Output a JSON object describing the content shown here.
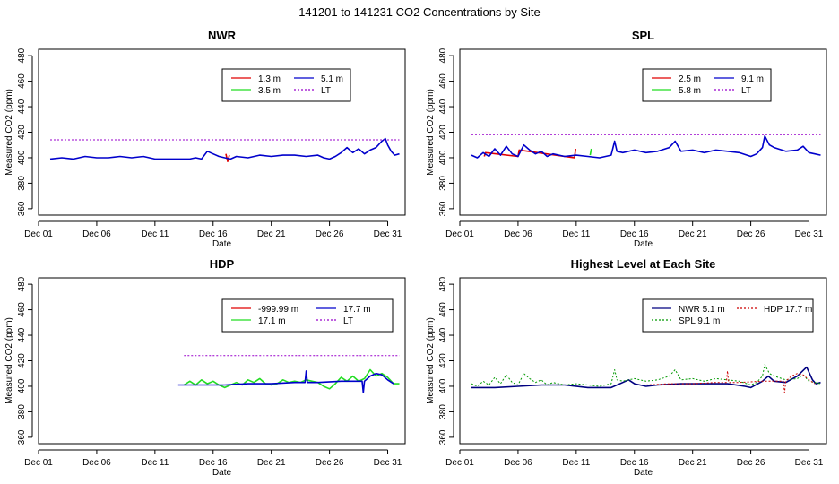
{
  "title": "141201  to  141231 CO2 Concentrations by Site",
  "colors": {
    "red": "#e00000",
    "green": "#22dd22",
    "blue": "#0000cc",
    "purple": "#9900cc",
    "darkred": "#cc0000",
    "darkgreen": "#009900",
    "navy": "#000080"
  },
  "chart_data": [
    {
      "type": "line",
      "title": "NWR",
      "xlabel": "Date",
      "ylabel": "Measured CO2 (ppm)",
      "xlim": [
        0,
        31.5
      ],
      "ylim": [
        355,
        485
      ],
      "yticks": [
        360,
        380,
        400,
        420,
        440,
        460,
        480
      ],
      "xticks": [
        0,
        5,
        10,
        15,
        20,
        25,
        30
      ],
      "xticklabels": [
        "Dec 01",
        "Dec 06",
        "Dec 11",
        "Dec 16",
        "Dec 21",
        "Dec 26",
        "Dec 31"
      ],
      "legend": {
        "position": "top-right",
        "columns": 2,
        "entries": [
          {
            "label": "1.3 m",
            "color": "red",
            "dash": false
          },
          {
            "label": "3.5 m",
            "color": "green",
            "dash": false
          },
          {
            "label": "5.1 m",
            "color": "blue",
            "dash": false
          },
          {
            "label": "LT",
            "color": "purple",
            "dash": true
          }
        ]
      },
      "series": [
        {
          "name": "1.3 m",
          "color": "red",
          "x": [
            16.1,
            16.25,
            16.4
          ],
          "y": [
            403,
            397,
            402
          ]
        },
        {
          "name": "3.5 m",
          "color": "green",
          "x": [],
          "y": []
        },
        {
          "name": "5.1 m",
          "color": "blue",
          "x": [
            1.0,
            2.0,
            3.0,
            4.0,
            5.0,
            6.0,
            7.0,
            8.0,
            9.0,
            10.0,
            11.0,
            12.0,
            13.0,
            13.5,
            14.0,
            14.5,
            15.0,
            15.5,
            16.0,
            16.5,
            17.0,
            18.0,
            19.0,
            20.0,
            21.0,
            22.0,
            23.0,
            24.0,
            24.5,
            25.0,
            25.5,
            26.0,
            26.5,
            27.0,
            27.5,
            28.0,
            28.5,
            29.0,
            29.5,
            29.8,
            30.0,
            30.3,
            30.6,
            31.0
          ],
          "y": [
            399,
            400,
            399,
            401,
            400,
            400,
            401,
            400,
            401,
            399,
            399,
            399,
            399,
            400,
            399,
            405,
            403,
            401,
            400,
            399,
            401,
            400,
            402,
            401,
            402,
            402,
            401,
            402,
            400,
            399,
            401,
            404,
            408,
            404,
            407,
            403,
            406,
            408,
            413,
            415,
            410,
            405,
            402,
            403
          ]
        },
        {
          "name": "LT",
          "color": "purple",
          "dash": true,
          "x": [
            1.0,
            31.0
          ],
          "y": [
            414,
            414
          ]
        }
      ]
    },
    {
      "type": "line",
      "title": "SPL",
      "xlabel": "Date",
      "ylabel": "Measured CO2 (ppm)",
      "xlim": [
        0,
        31.5
      ],
      "ylim": [
        355,
        485
      ],
      "yticks": [
        360,
        380,
        400,
        420,
        440,
        460,
        480
      ],
      "xticks": [
        0,
        5,
        10,
        15,
        20,
        25,
        30
      ],
      "xticklabels": [
        "Dec 01",
        "Dec 06",
        "Dec 11",
        "Dec 16",
        "Dec 21",
        "Dec 26",
        "Dec 31"
      ],
      "legend": {
        "position": "top-right",
        "columns": 2,
        "entries": [
          {
            "label": "2.5 m",
            "color": "red",
            "dash": false
          },
          {
            "label": "5.8 m",
            "color": "green",
            "dash": false
          },
          {
            "label": "9.1 m",
            "color": "blue",
            "dash": false
          },
          {
            "label": "LT",
            "color": "purple",
            "dash": true
          }
        ]
      },
      "series": [
        {
          "name": "2.5 m",
          "color": "red",
          "x": [
            2.1,
            2.2,
            5.0,
            5.1,
            9.85,
            9.95
          ],
          "y": [
            401,
            404,
            401,
            406,
            400,
            407
          ]
        },
        {
          "name": "5.8 m",
          "color": "green",
          "x": [
            11.2,
            11.3
          ],
          "y": [
            402,
            407
          ]
        },
        {
          "name": "9.1 m",
          "color": "blue",
          "x": [
            1.0,
            1.5,
            2.0,
            2.5,
            3.0,
            3.5,
            4.0,
            4.5,
            5.0,
            5.5,
            6.0,
            6.5,
            7.0,
            7.5,
            8.0,
            9.0,
            10.0,
            11.0,
            12.0,
            13.0,
            13.3,
            13.5,
            14.0,
            15.0,
            16.0,
            17.0,
            18.0,
            18.5,
            19.0,
            20.0,
            21.0,
            22.0,
            23.0,
            24.0,
            25.0,
            25.5,
            26.0,
            26.2,
            26.6,
            27.0,
            28.0,
            29.0,
            29.5,
            30.0,
            30.5,
            31.0
          ],
          "y": [
            402,
            400,
            404,
            401,
            407,
            402,
            409,
            403,
            401,
            410,
            406,
            403,
            405,
            401,
            403,
            401,
            402,
            401,
            400,
            402,
            413,
            405,
            404,
            406,
            404,
            405,
            408,
            413,
            405,
            406,
            404,
            406,
            405,
            404,
            401,
            403,
            408,
            417,
            410,
            408,
            405,
            406,
            409,
            404,
            403,
            402
          ]
        },
        {
          "name": "LT",
          "color": "purple",
          "dash": true,
          "x": [
            1.0,
            31.0
          ],
          "y": [
            418,
            418
          ]
        }
      ]
    },
    {
      "type": "line",
      "title": "HDP",
      "xlabel": "Date",
      "ylabel": "Measured CO2 (ppm)",
      "xlim": [
        0,
        31.5
      ],
      "ylim": [
        355,
        485
      ],
      "yticks": [
        360,
        380,
        400,
        420,
        440,
        460,
        480
      ],
      "xticks": [
        0,
        5,
        10,
        15,
        20,
        25,
        30
      ],
      "xticklabels": [
        "Dec 01",
        "Dec 06",
        "Dec 11",
        "Dec 16",
        "Dec 21",
        "Dec 26",
        "Dec 31"
      ],
      "legend": {
        "position": "top-right",
        "columns": 2,
        "entries": [
          {
            "label": "-999.99 m",
            "color": "red",
            "dash": false
          },
          {
            "label": "17.1 m",
            "color": "green",
            "dash": false
          },
          {
            "label": "17.7 m",
            "color": "blue",
            "dash": false
          },
          {
            "label": "LT",
            "color": "purple",
            "dash": true
          }
        ]
      },
      "series": [
        {
          "name": "-999.99 m",
          "color": "red",
          "x": [],
          "y": []
        },
        {
          "name": "17.1 m",
          "color": "green",
          "x": [
            12.5,
            13.0,
            13.5,
            14.0,
            14.5,
            15.0,
            15.5,
            16.0,
            16.5,
            17.0,
            17.5,
            18.0,
            18.5,
            19.0,
            19.5,
            20.0,
            20.5,
            21.0,
            21.5,
            22.0,
            22.5,
            23.0,
            23.5,
            24.0,
            24.5,
            25.0,
            25.5,
            26.0,
            26.5,
            27.0,
            27.5,
            28.0,
            28.5,
            29.0,
            29.5,
            30.0,
            30.5,
            31.0
          ],
          "y": [
            401,
            404,
            401,
            405,
            402,
            404,
            401,
            399,
            401,
            403,
            401,
            405,
            403,
            406,
            402,
            401,
            402,
            405,
            403,
            404,
            403,
            405,
            404,
            403,
            400,
            398,
            402,
            407,
            404,
            408,
            404,
            406,
            413,
            408,
            410,
            407,
            402,
            402
          ]
        },
        {
          "name": "17.7 m",
          "color": "blue",
          "x": [
            12.0,
            14.0,
            16.0,
            18.0,
            20.0,
            22.0,
            22.9,
            23.0,
            23.1,
            24.0,
            26.0,
            27.0,
            27.8,
            27.9,
            28.0,
            28.5,
            29.0,
            29.5,
            30.0,
            30.5
          ],
          "y": [
            401,
            401,
            401,
            402,
            402,
            403,
            403,
            412,
            403,
            403,
            404,
            404,
            404,
            395,
            404,
            408,
            410,
            409,
            405,
            402
          ]
        },
        {
          "name": "LT",
          "color": "purple",
          "dash": true,
          "x": [
            12.5,
            31.0
          ],
          "y": [
            424,
            424
          ]
        }
      ]
    },
    {
      "type": "line",
      "title": "Highest Level at Each Site",
      "xlabel": "Date",
      "ylabel": "Measured CO2 (ppm)",
      "xlim": [
        0,
        31.5
      ],
      "ylim": [
        355,
        485
      ],
      "yticks": [
        360,
        380,
        400,
        420,
        440,
        460,
        480
      ],
      "xticks": [
        0,
        5,
        10,
        15,
        20,
        25,
        30
      ],
      "xticklabels": [
        "Dec 01",
        "Dec 06",
        "Dec 11",
        "Dec 16",
        "Dec 21",
        "Dec 26",
        "Dec 31"
      ],
      "legend": {
        "position": "top-right",
        "columns": 2,
        "entries": [
          {
            "label": "NWR  5.1 m",
            "color": "navy",
            "dash": false
          },
          {
            "label": "SPL  9.1 m",
            "color": "darkgreen",
            "dash": true
          },
          {
            "label": "HDP  17.7 m",
            "color": "darkred",
            "dash": true
          }
        ]
      },
      "series": [
        {
          "name": "NWR  5.1 m",
          "color": "navy",
          "x": [
            1.0,
            3.0,
            5.0,
            7.0,
            9.0,
            11.0,
            13.0,
            14.5,
            15.0,
            16.0,
            17.0,
            19.0,
            21.0,
            23.0,
            24.5,
            25.0,
            26.0,
            26.5,
            27.0,
            28.0,
            29.0,
            29.8,
            30.3,
            30.6,
            31.0
          ],
          "y": [
            399,
            399,
            400,
            401,
            401,
            399,
            399,
            405,
            402,
            400,
            401,
            402,
            402,
            402,
            400,
            399,
            404,
            408,
            404,
            403,
            408,
            415,
            405,
            402,
            403
          ]
        },
        {
          "name": "SPL  9.1 m",
          "color": "darkgreen",
          "dash": true,
          "x": [
            1.0,
            1.5,
            2.0,
            2.5,
            3.0,
            3.5,
            4.0,
            4.5,
            5.0,
            5.5,
            6.0,
            6.5,
            7.0,
            7.5,
            8.0,
            9.0,
            10.0,
            11.0,
            12.0,
            13.0,
            13.3,
            13.5,
            14.0,
            15.0,
            16.0,
            17.0,
            18.0,
            18.5,
            19.0,
            20.0,
            21.0,
            22.0,
            23.0,
            24.0,
            25.0,
            25.5,
            26.0,
            26.2,
            26.6,
            27.0,
            28.0,
            29.0,
            29.5,
            30.0,
            30.5,
            31.0
          ],
          "y": [
            402,
            400,
            404,
            401,
            407,
            402,
            409,
            403,
            401,
            410,
            406,
            403,
            405,
            401,
            403,
            401,
            402,
            401,
            400,
            402,
            413,
            405,
            404,
            406,
            404,
            405,
            408,
            413,
            405,
            406,
            404,
            406,
            405,
            404,
            401,
            403,
            408,
            417,
            410,
            408,
            405,
            406,
            409,
            404,
            403,
            402
          ]
        },
        {
          "name": "HDP  17.7 m",
          "color": "darkred",
          "dash": true,
          "x": [
            12.0,
            14.0,
            16.0,
            18.0,
            20.0,
            22.0,
            22.9,
            23.0,
            23.1,
            24.0,
            26.0,
            27.0,
            27.8,
            27.9,
            28.0,
            28.5,
            29.0,
            29.5,
            30.0,
            30.5
          ],
          "y": [
            401,
            401,
            401,
            402,
            402,
            403,
            403,
            412,
            403,
            403,
            404,
            404,
            404,
            395,
            404,
            408,
            410,
            409,
            405,
            402
          ]
        }
      ]
    }
  ]
}
